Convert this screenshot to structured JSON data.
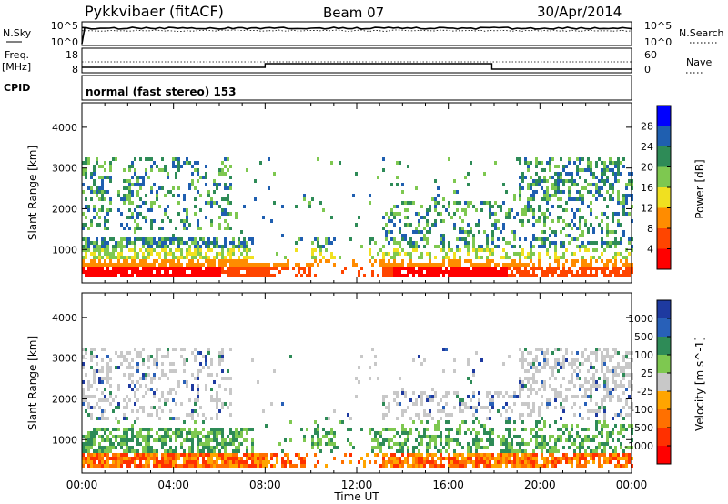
{
  "header": {
    "title": "Pykkvibaer (fitACF)",
    "beam": "Beam 07",
    "date": "30/Apr/2014"
  },
  "noise_panel": {
    "left_label": "N.Sky",
    "left_ticks": [
      "10^5",
      "10^0"
    ],
    "right_ticks": [
      "10^5",
      "10^0"
    ],
    "right_label": "N.Search"
  },
  "freq_panel": {
    "left_label_1": "Freq.",
    "left_label_2": "[MHz]",
    "left_ticks": [
      "18",
      "8"
    ],
    "right_ticks": [
      "60",
      "0"
    ],
    "right_label": "Nave"
  },
  "cpid": {
    "label": "CPID",
    "mode": "normal (fast stereo) 153"
  },
  "colors": {
    "power": [
      "#0000ff",
      "#1f5fb0",
      "#2e8b57",
      "#7ec850",
      "#f0e020",
      "#ff8c00",
      "#ff4500",
      "#ff0000"
    ],
    "velocity": [
      "#1e3aa0",
      "#2860b8",
      "#2e8b57",
      "#7ec850",
      "#c8c8c8",
      "#ffa500",
      "#ff7000",
      "#ff3000",
      "#ff0000"
    ],
    "line": "#000000",
    "grid": "#000000"
  },
  "chart_data": [
    {
      "type": "heatmap",
      "panel": "power",
      "ylabel": "Slant Range [km]",
      "y_ticks": [
        "1000",
        "2000",
        "3000",
        "4000"
      ],
      "ylim": [
        180,
        4600
      ],
      "x_ticks": [
        "00:00",
        "04:00",
        "08:00",
        "12:00",
        "16:00",
        "20:00",
        "00:00"
      ],
      "xlim_hours": [
        0,
        24
      ],
      "colorbar": {
        "label": "Power [dB]",
        "ticks": [
          "4",
          "8",
          "12",
          "16",
          "20",
          "24",
          "28"
        ]
      }
    },
    {
      "type": "heatmap",
      "panel": "velocity",
      "ylabel": "Slant Range [km]",
      "y_ticks": [
        "1000",
        "2000",
        "3000",
        "4000"
      ],
      "ylim": [
        180,
        4600
      ],
      "xlabel": "Time UT",
      "x_ticks": [
        "00:00",
        "04:00",
        "08:00",
        "12:00",
        "16:00",
        "20:00",
        "00:00"
      ],
      "xlim_hours": [
        0,
        24
      ],
      "colorbar": {
        "label": "Velocity [m s^-1]",
        "ticks": [
          "1000",
          "500",
          "100",
          "25",
          "-25",
          "-100",
          "-500",
          "-1000"
        ]
      }
    }
  ]
}
